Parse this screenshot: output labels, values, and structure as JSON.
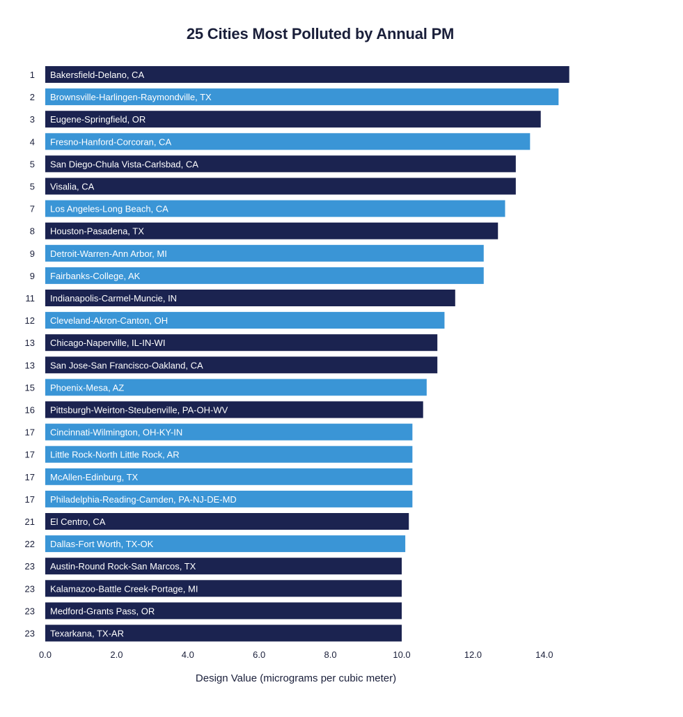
{
  "chart_data": {
    "type": "bar",
    "orientation": "horizontal",
    "title": "25 Cities Most Polluted by Annual PM",
    "xlabel": "Design Value (micrograms per cubic meter)",
    "ylabel": "",
    "xlim": [
      0,
      14.0
    ],
    "x_ticks": [
      "0.0",
      "2.0",
      "4.0",
      "6.0",
      "8.0",
      "10.0",
      "12.0",
      "14.0"
    ],
    "grid": false,
    "colors": {
      "dark": "#1b2350",
      "light": "#3a95d6"
    },
    "bars": [
      {
        "rank": "1",
        "label": "Bakersfield-Delano, CA",
        "value": 14.7,
        "color": "dark"
      },
      {
        "rank": "2",
        "label": "Brownsville-Harlingen-Raymondville, TX",
        "value": 14.4,
        "color": "light"
      },
      {
        "rank": "3",
        "label": "Eugene-Springfield, OR",
        "value": 13.9,
        "color": "dark"
      },
      {
        "rank": "4",
        "label": "Fresno-Hanford-Corcoran, CA",
        "value": 13.6,
        "color": "light"
      },
      {
        "rank": "5",
        "label": "San Diego-Chula Vista-Carlsbad, CA",
        "value": 13.2,
        "color": "dark"
      },
      {
        "rank": "5",
        "label": "Visalia, CA",
        "value": 13.2,
        "color": "dark"
      },
      {
        "rank": "7",
        "label": "Los Angeles-Long Beach, CA",
        "value": 12.9,
        "color": "light"
      },
      {
        "rank": "8",
        "label": "Houston-Pasadena, TX",
        "value": 12.7,
        "color": "dark"
      },
      {
        "rank": "9",
        "label": "Detroit-Warren-Ann Arbor, MI",
        "value": 12.3,
        "color": "light"
      },
      {
        "rank": "9",
        "label": "Fairbanks-College, AK",
        "value": 12.3,
        "color": "light"
      },
      {
        "rank": "11",
        "label": "Indianapolis-Carmel-Muncie, IN",
        "value": 11.5,
        "color": "dark"
      },
      {
        "rank": "12",
        "label": "Cleveland-Akron-Canton, OH",
        "value": 11.2,
        "color": "light"
      },
      {
        "rank": "13",
        "label": "Chicago-Naperville, IL-IN-WI",
        "value": 11.0,
        "color": "dark"
      },
      {
        "rank": "13",
        "label": "San Jose-San Francisco-Oakland, CA",
        "value": 11.0,
        "color": "dark"
      },
      {
        "rank": "15",
        "label": "Phoenix-Mesa, AZ",
        "value": 10.7,
        "color": "light"
      },
      {
        "rank": "16",
        "label": "Pittsburgh-Weirton-Steubenville, PA-OH-WV",
        "value": 10.6,
        "color": "dark"
      },
      {
        "rank": "17",
        "label": "Cincinnati-Wilmington, OH-KY-IN",
        "value": 10.3,
        "color": "light"
      },
      {
        "rank": "17",
        "label": "Little Rock-North Little Rock, AR",
        "value": 10.3,
        "color": "light"
      },
      {
        "rank": "17",
        "label": "McAllen-Edinburg, TX",
        "value": 10.3,
        "color": "light"
      },
      {
        "rank": "17",
        "label": "Philadelphia-Reading-Camden, PA-NJ-DE-MD",
        "value": 10.3,
        "color": "light"
      },
      {
        "rank": "21",
        "label": "El Centro, CA",
        "value": 10.2,
        "color": "dark"
      },
      {
        "rank": "22",
        "label": "Dallas-Fort Worth, TX-OK",
        "value": 10.1,
        "color": "light"
      },
      {
        "rank": "23",
        "label": "Austin-Round Rock-San Marcos, TX",
        "value": 10.0,
        "color": "dark"
      },
      {
        "rank": "23",
        "label": "Kalamazoo-Battle Creek-Portage, MI",
        "value": 10.0,
        "color": "dark"
      },
      {
        "rank": "23",
        "label": "Medford-Grants Pass, OR",
        "value": 10.0,
        "color": "dark"
      },
      {
        "rank": "23",
        "label": "Texarkana, TX-AR",
        "value": 10.0,
        "color": "dark"
      }
    ]
  }
}
